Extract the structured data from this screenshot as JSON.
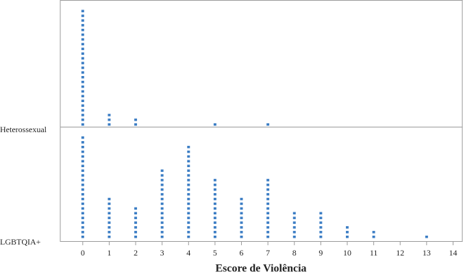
{
  "chart_data": {
    "type": "dotplot",
    "x_label": "Escore de Violência",
    "x": [
      0,
      1,
      2,
      3,
      4,
      5,
      6,
      7,
      8,
      9,
      10,
      11,
      12,
      13,
      14
    ],
    "xlim": [
      -0.85,
      14.35
    ],
    "xticks": [
      0,
      1,
      2,
      3,
      4,
      5,
      6,
      7,
      8,
      9,
      10,
      11,
      12,
      13,
      14
    ],
    "series": [
      {
        "name": "Heterossexual",
        "color": "#3b7dc4",
        "values": [
          25,
          3,
          2,
          0,
          0,
          1,
          0,
          1,
          0,
          0,
          0,
          0,
          0,
          0,
          0
        ]
      },
      {
        "name": "LGBTQIA+",
        "color": "#3b7dc4",
        "values": [
          22,
          9,
          7,
          15,
          20,
          13,
          9,
          13,
          6,
          6,
          3,
          2,
          0,
          1,
          0
        ]
      }
    ]
  }
}
